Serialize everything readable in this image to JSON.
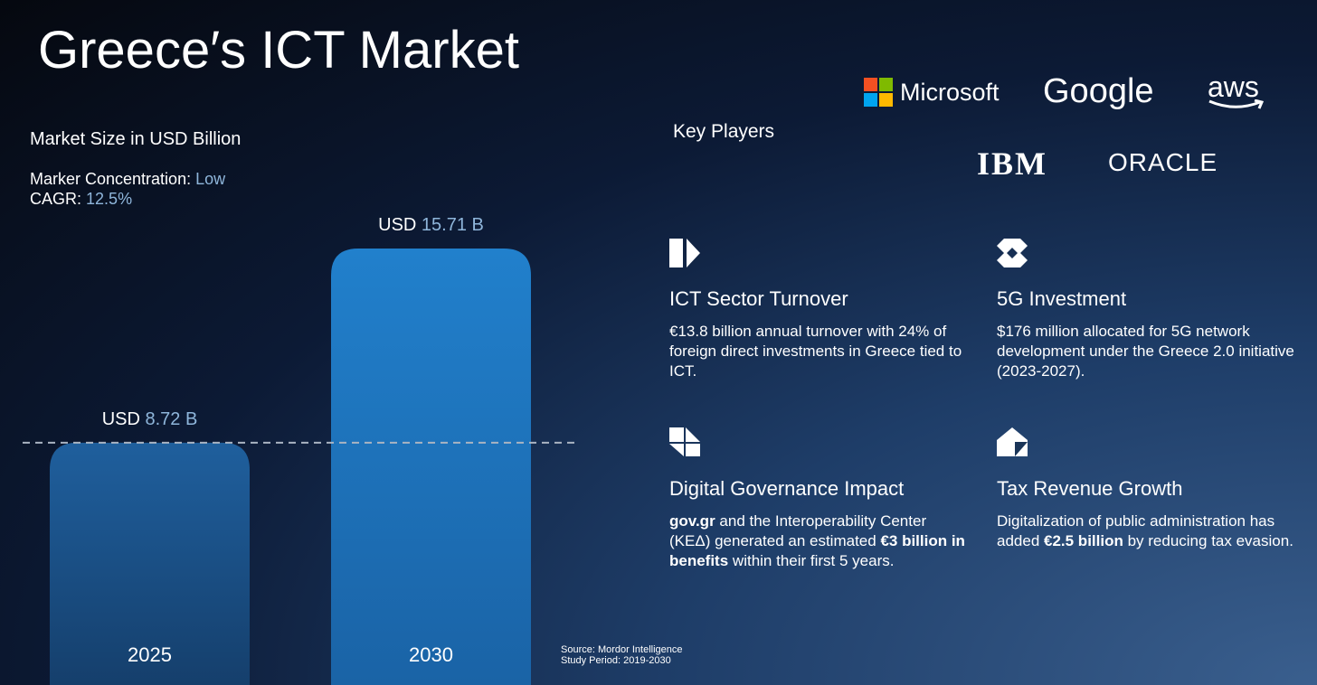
{
  "title": "Greece′s ICT Market",
  "chart_data": {
    "type": "bar",
    "title": "Market Size in USD Billion",
    "categories": [
      "2025",
      "2030"
    ],
    "values": [
      8.72,
      15.71
    ],
    "value_prefix": "USD",
    "value_labels": [
      "8.72 B",
      "15.71 B"
    ],
    "colors": [
      "#1d5c98",
      "#1e7bc6"
    ],
    "reference_line": "dashed"
  },
  "stats": [
    {
      "label": "Marker Concentration:",
      "value": "Low"
    },
    {
      "label": "CAGR:",
      "value": "12.5%"
    }
  ],
  "key_players": {
    "title": "Key Players",
    "logos": [
      "Microsoft",
      "Google",
      "aws",
      "IBM",
      "ORACLE"
    ]
  },
  "cards": [
    {
      "title": "ICT Sector Turnover",
      "body": [
        {
          "t": "€13.8 billion annual turnover with 24% of foreign direct investments in Greece tied to ICT."
        }
      ]
    },
    {
      "title": "5G Investment",
      "body": [
        {
          "t": "$176 million allocated for 5G network development under the Greece 2.0 initiative (2023-2027)."
        }
      ]
    },
    {
      "title": "Digital Governance Impact",
      "body": [
        {
          "t": "gov.gr",
          "bold": true
        },
        {
          "t": " and the Interoperability Center (ΚΕΔ) generated an estimated "
        },
        {
          "t": "€3 billion in benefits",
          "bold": true
        },
        {
          "t": " within their first 5 years."
        }
      ]
    },
    {
      "title": "Tax Revenue Growth",
      "body": [
        {
          "t": "Digitalization of public administration has added "
        },
        {
          "t": "€2.5 billion",
          "bold": true
        },
        {
          "t": " by reducing tax evasion."
        }
      ]
    }
  ],
  "source": [
    "Source: Mordor Intelligence",
    "Study Period: 2019-2030"
  ]
}
